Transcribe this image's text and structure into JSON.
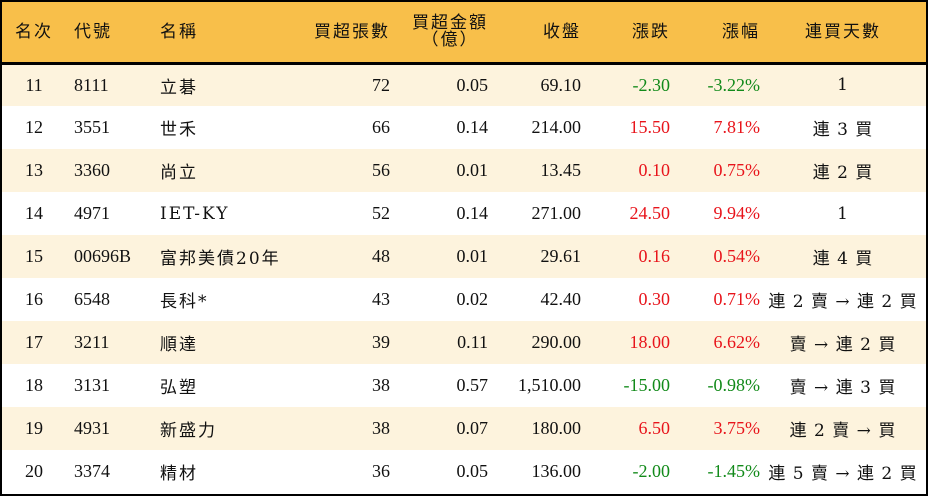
{
  "table": {
    "headers": {
      "rank": "名次",
      "code": "代號",
      "name": "名稱",
      "net_buy_lots": "買超張數",
      "net_buy_amount_line1": "買超金額",
      "net_buy_amount_line2": "（億）",
      "close": "收盤",
      "change": "漲跌",
      "change_pct": "漲幅",
      "consecutive_buy_days": "連買天數"
    },
    "colors": {
      "header_bg": "#F8BF4A",
      "row_odd_bg": "#FDF3DD",
      "row_even_bg": "#FFFFFF",
      "up": "#E8141B",
      "down": "#128A1A"
    },
    "rows": [
      {
        "rank": "11",
        "code": "8111",
        "name": "立碁",
        "lots": "72",
        "amount": "0.05",
        "close": "69.10",
        "change": "-2.30",
        "pct": "-3.22%",
        "direction": "down",
        "streak": "1"
      },
      {
        "rank": "12",
        "code": "3551",
        "name": "世禾",
        "lots": "66",
        "amount": "0.14",
        "close": "214.00",
        "change": "15.50",
        "pct": "7.81%",
        "direction": "up",
        "streak": "連 3 買"
      },
      {
        "rank": "13",
        "code": "3360",
        "name": "尚立",
        "lots": "56",
        "amount": "0.01",
        "close": "13.45",
        "change": "0.10",
        "pct": "0.75%",
        "direction": "up",
        "streak": "連 2 買"
      },
      {
        "rank": "14",
        "code": "4971",
        "name": "IET-KY",
        "lots": "52",
        "amount": "0.14",
        "close": "271.00",
        "change": "24.50",
        "pct": "9.94%",
        "direction": "up",
        "streak": "1"
      },
      {
        "rank": "15",
        "code": "00696B",
        "name": "富邦美債20年",
        "lots": "48",
        "amount": "0.01",
        "close": "29.61",
        "change": "0.16",
        "pct": "0.54%",
        "direction": "up",
        "streak": "連 4 買"
      },
      {
        "rank": "16",
        "code": "6548",
        "name": "長科*",
        "lots": "43",
        "amount": "0.02",
        "close": "42.40",
        "change": "0.30",
        "pct": "0.71%",
        "direction": "up",
        "streak": "連 2 賣 → 連 2 買"
      },
      {
        "rank": "17",
        "code": "3211",
        "name": "順達",
        "lots": "39",
        "amount": "0.11",
        "close": "290.00",
        "change": "18.00",
        "pct": "6.62%",
        "direction": "up",
        "streak": "賣 → 連 2 買"
      },
      {
        "rank": "18",
        "code": "3131",
        "name": "弘塑",
        "lots": "38",
        "amount": "0.57",
        "close": "1,510.00",
        "change": "-15.00",
        "pct": "-0.98%",
        "direction": "down",
        "streak": "賣 → 連 3 買"
      },
      {
        "rank": "19",
        "code": "4931",
        "name": "新盛力",
        "lots": "38",
        "amount": "0.07",
        "close": "180.00",
        "change": "6.50",
        "pct": "3.75%",
        "direction": "up",
        "streak": "連 2 賣 → 買"
      },
      {
        "rank": "20",
        "code": "3374",
        "name": "精材",
        "lots": "36",
        "amount": "0.05",
        "close": "136.00",
        "change": "-2.00",
        "pct": "-1.45%",
        "direction": "down",
        "streak": "連 5 賣 → 連 2 買"
      }
    ]
  }
}
